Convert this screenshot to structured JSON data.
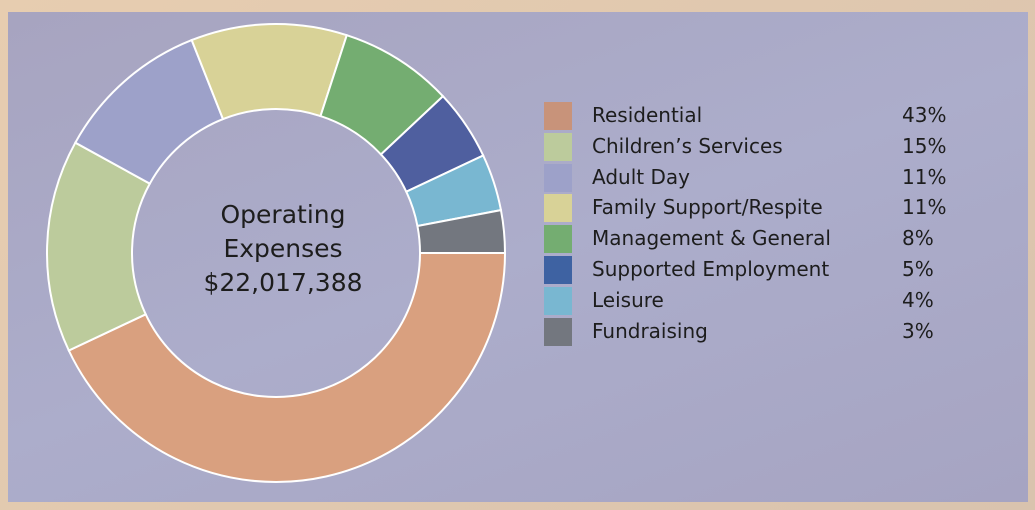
{
  "chart_data": {
    "type": "pie",
    "center_label": [
      "Operating",
      "Expenses",
      "$22,017,388"
    ],
    "legend_placement": "right",
    "slices": [
      {
        "label": "Residential",
        "value": 43,
        "pct_label": "43%",
        "color": "#d9a07f",
        "swatch": "#c8937a"
      },
      {
        "label": "Children’s Services",
        "value": 15,
        "pct_label": "15%",
        "color": "#bccb9c",
        "swatch": "#bccb9c"
      },
      {
        "label": "Adult Day",
        "value": 11,
        "pct_label": "11%",
        "color": "#9da1c9",
        "swatch": "#9da1c9"
      },
      {
        "label": "Family Support/Respite",
        "value": 11,
        "pct_label": "11%",
        "color": "#d8d297",
        "swatch": "#d8d297"
      },
      {
        "label": "Management & General",
        "value": 8,
        "pct_label": "8%",
        "color": "#74ad71",
        "swatch": "#74ad71"
      },
      {
        "label": "Supported Employment",
        "value": 5,
        "pct_label": "5%",
        "color": "#4f5f9f",
        "swatch": "#3e62a2"
      },
      {
        "label": "Leisure",
        "value": 4,
        "pct_label": "4%",
        "color": "#79b7d1",
        "swatch": "#79b7d1"
      },
      {
        "label": "Fundraising",
        "value": 3,
        "pct_label": "3%",
        "color": "#73777f",
        "swatch": "#73777f"
      }
    ]
  }
}
